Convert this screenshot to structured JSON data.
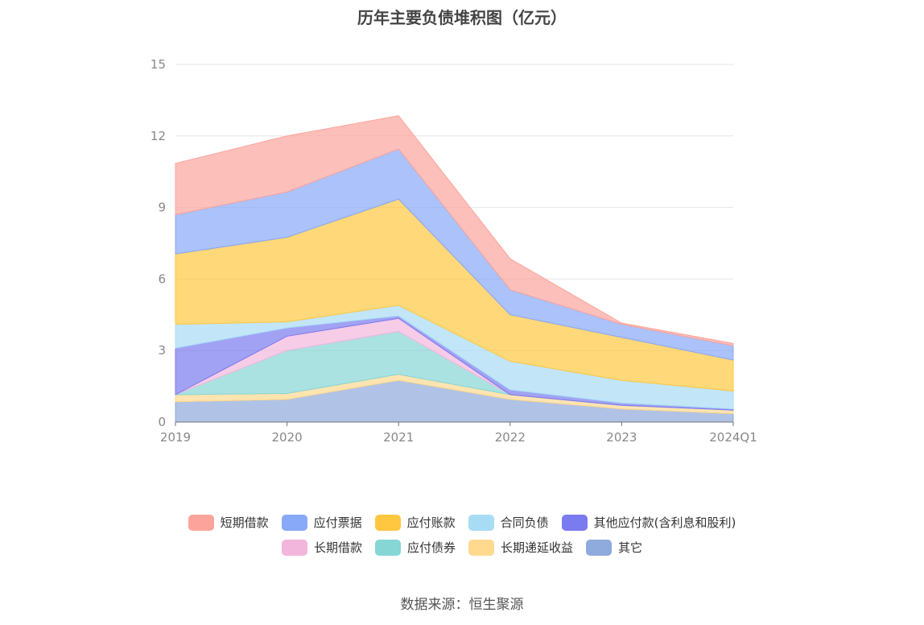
{
  "chart_data": {
    "type": "area",
    "stacked": true,
    "title": "历年主要负债堆积图（亿元）",
    "categories": [
      "2019",
      "2020",
      "2021",
      "2022",
      "2023",
      "2024Q1"
    ],
    "ylim": [
      0,
      15
    ],
    "yticks": [
      "0",
      "3",
      "6",
      "9",
      "12",
      "15"
    ],
    "grid": true,
    "legend_position": "bottom",
    "series": [
      {
        "name": "其它",
        "color": "#8faadc",
        "values": [
          0.85,
          0.95,
          1.75,
          0.95,
          0.55,
          0.35
        ]
      },
      {
        "name": "长期递延收益",
        "color": "#ffd98e",
        "values": [
          0.3,
          0.25,
          0.25,
          0.2,
          0.15,
          0.15
        ]
      },
      {
        "name": "应付债券",
        "color": "#86d6d6",
        "values": [
          0.0,
          1.8,
          1.8,
          0.0,
          0.0,
          0.0
        ]
      },
      {
        "name": "长期借款",
        "color": "#f2b6dc",
        "values": [
          0.0,
          0.6,
          0.55,
          0.0,
          0.0,
          0.0
        ]
      },
      {
        "name": "其他应付款(含利息和股利)",
        "color": "#7b7bf0",
        "values": [
          1.95,
          0.35,
          0.1,
          0.2,
          0.1,
          0.05
        ]
      },
      {
        "name": "合同负债",
        "color": "#a8dcf5",
        "values": [
          1.0,
          0.25,
          0.45,
          1.2,
          0.95,
          0.75
        ]
      },
      {
        "name": "应付账款",
        "color": "#ffc740",
        "values": [
          2.95,
          3.55,
          4.45,
          1.95,
          1.8,
          1.3
        ]
      },
      {
        "name": "应付票据",
        "color": "#88a8f8",
        "values": [
          1.65,
          1.9,
          2.1,
          1.05,
          0.55,
          0.6
        ]
      },
      {
        "name": "短期借款",
        "color": "#fca49c",
        "values": [
          2.15,
          2.35,
          1.4,
          1.3,
          0.05,
          0.1
        ]
      }
    ],
    "legend_order": [
      "短期借款",
      "应付票据",
      "应付账款",
      "合同负债",
      "其他应付款(含利息和股利)",
      "长期借款",
      "应付债券",
      "长期递延收益",
      "其它"
    ]
  },
  "footer": {
    "source": "数据来源：恒生聚源"
  }
}
